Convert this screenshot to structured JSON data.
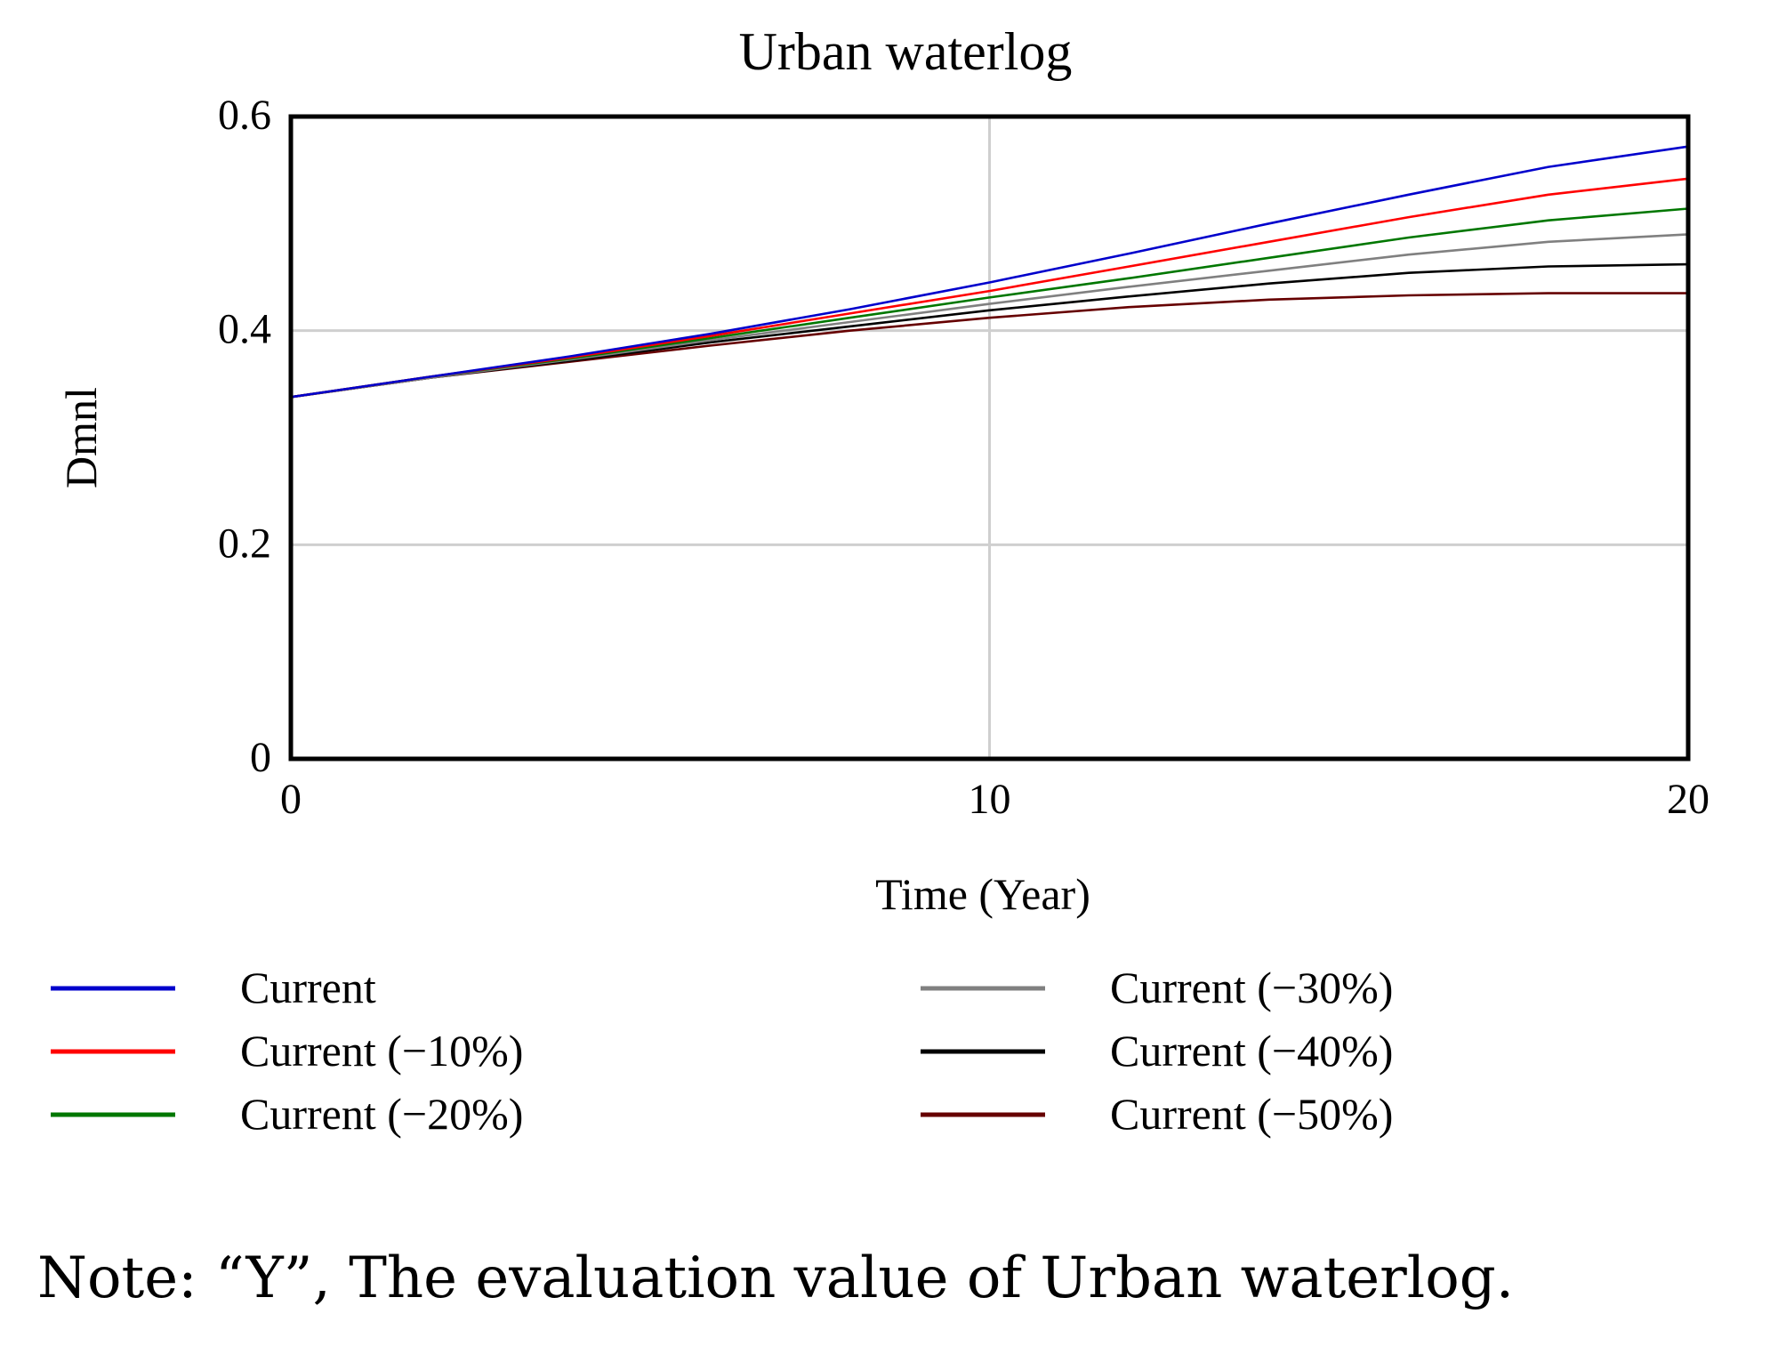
{
  "chart_data": {
    "type": "line",
    "title": "Urban waterlog",
    "xlabel": "Time (Year)",
    "ylabel": "Dmnl",
    "xlim": [
      0,
      20
    ],
    "ylim": [
      0,
      0.6
    ],
    "x_ticks": [
      "0",
      "10",
      "20"
    ],
    "y_ticks": [
      "0",
      "0.2",
      "0.4",
      "0.6"
    ],
    "grid": true,
    "x": [
      0,
      2,
      4,
      6,
      8,
      10,
      12,
      14,
      16,
      18,
      20
    ],
    "series": [
      {
        "name": "Current",
        "color": "#0000cc",
        "values": [
          0.338,
          0.357,
          0.376,
          0.397,
          0.42,
          0.445,
          0.472,
          0.5,
          0.527,
          0.553,
          0.572
        ]
      },
      {
        "name": "Current (−10%)",
        "color": "#ff0000",
        "values": [
          0.338,
          0.357,
          0.375,
          0.395,
          0.416,
          0.437,
          0.46,
          0.483,
          0.506,
          0.527,
          0.542
        ]
      },
      {
        "name": "Current (−20%)",
        "color": "#007700",
        "values": [
          0.338,
          0.357,
          0.374,
          0.393,
          0.412,
          0.431,
          0.449,
          0.468,
          0.487,
          0.503,
          0.514
        ]
      },
      {
        "name": "Current (−30%)",
        "color": "#808080",
        "values": [
          0.338,
          0.356,
          0.373,
          0.391,
          0.408,
          0.425,
          0.441,
          0.456,
          0.471,
          0.483,
          0.49
        ]
      },
      {
        "name": "Current (−40%)",
        "color": "#000000",
        "values": [
          0.338,
          0.356,
          0.372,
          0.389,
          0.404,
          0.419,
          0.432,
          0.444,
          0.454,
          0.46,
          0.462
        ]
      },
      {
        "name": "Current (−50%)",
        "color": "#660000",
        "values": [
          0.338,
          0.356,
          0.371,
          0.386,
          0.4,
          0.412,
          0.422,
          0.429,
          0.433,
          0.435,
          0.435
        ]
      }
    ],
    "legend": "bottom"
  },
  "note": "Note: “Y”, The evaluation value of Urban waterlog."
}
